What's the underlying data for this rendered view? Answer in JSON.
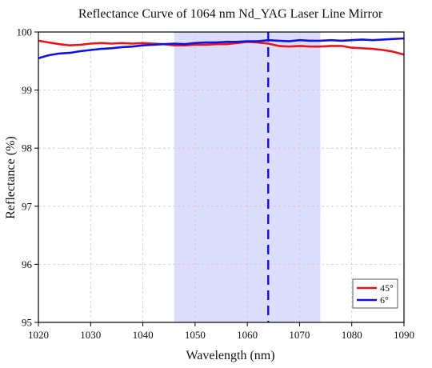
{
  "chart_data": {
    "type": "line",
    "title": "Reflectance Curve of 1064 nm Nd_YAG Laser Line Mirror",
    "xlabel": "Wavelength (nm)",
    "ylabel": "Reflectance (%)",
    "xlim": [
      1020,
      1090
    ],
    "ylim": [
      95,
      100
    ],
    "xticks": [
      1020,
      1030,
      1040,
      1050,
      1060,
      1070,
      1080,
      1090
    ],
    "yticks": [
      95,
      96,
      97,
      98,
      99,
      100
    ],
    "grid": true,
    "legend_position": "bottom-right",
    "shaded_region": {
      "x": [
        1046,
        1074
      ],
      "color": "#dcdcfb"
    },
    "vertical_line": {
      "x": 1064,
      "style": "dashed",
      "color": "#1010e0"
    },
    "x": [
      1020,
      1022,
      1024,
      1026,
      1028,
      1030,
      1032,
      1034,
      1036,
      1038,
      1040,
      1042,
      1044,
      1046,
      1048,
      1050,
      1052,
      1054,
      1056,
      1058,
      1060,
      1062,
      1064,
      1066,
      1068,
      1070,
      1072,
      1074,
      1076,
      1078,
      1080,
      1082,
      1084,
      1086,
      1088,
      1090
    ],
    "series": [
      {
        "name": "45°",
        "color": "#e8141c",
        "values": [
          99.85,
          99.82,
          99.79,
          99.77,
          99.78,
          99.8,
          99.81,
          99.8,
          99.81,
          99.8,
          99.81,
          99.8,
          99.79,
          99.77,
          99.77,
          99.78,
          99.78,
          99.79,
          99.79,
          99.81,
          99.83,
          99.82,
          99.8,
          99.76,
          99.75,
          99.76,
          99.75,
          99.75,
          99.76,
          99.76,
          99.73,
          99.72,
          99.71,
          99.69,
          99.66,
          99.61
        ]
      },
      {
        "name": "6°",
        "color": "#1010e0",
        "values": [
          99.55,
          99.6,
          99.63,
          99.64,
          99.67,
          99.69,
          99.71,
          99.72,
          99.74,
          99.75,
          99.77,
          99.78,
          99.79,
          99.8,
          99.79,
          99.81,
          99.82,
          99.82,
          99.83,
          99.83,
          99.84,
          99.84,
          99.86,
          99.85,
          99.84,
          99.86,
          99.85,
          99.85,
          99.86,
          99.85,
          99.86,
          99.87,
          99.86,
          99.87,
          99.88,
          99.89
        ]
      }
    ]
  }
}
